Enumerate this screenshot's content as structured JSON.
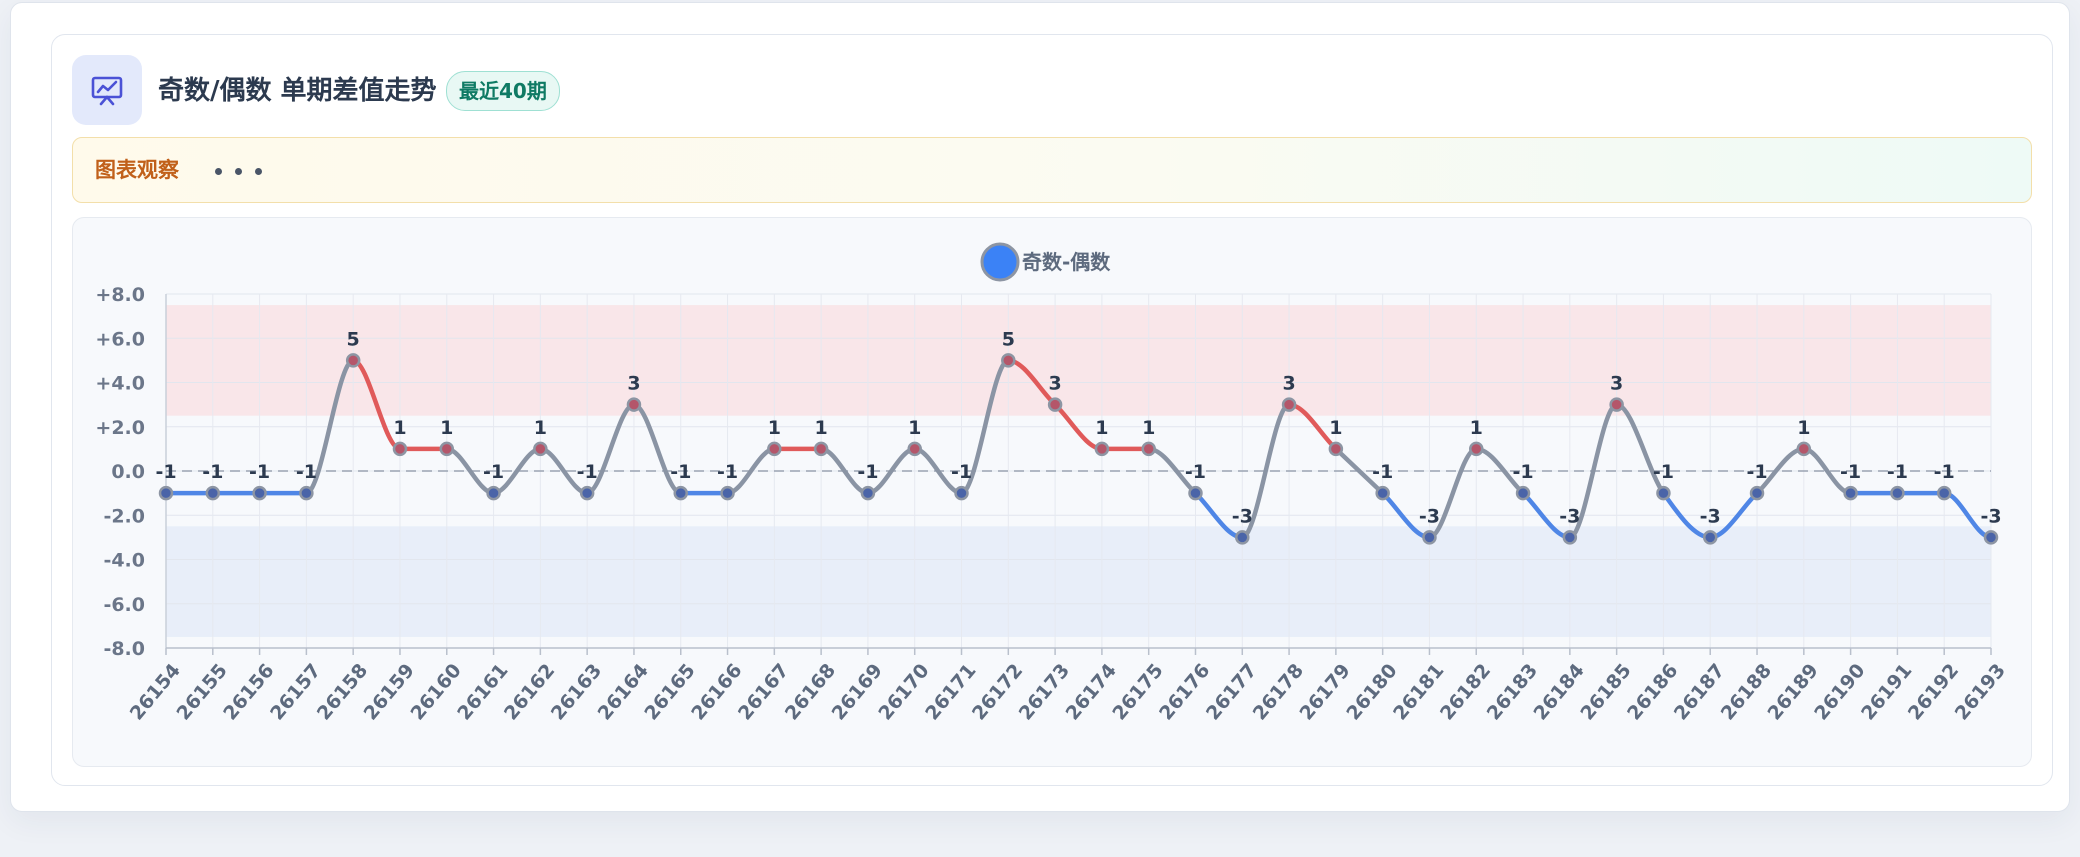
{
  "header": {
    "title": "奇数/偶数 单期差值走势",
    "badge": "最近40期",
    "icon": "presentation-chart-icon"
  },
  "insight": {
    "label": "图表观察",
    "icon": "more-dots-icon"
  },
  "colors": {
    "positive_line": "#e05a5a",
    "negative_line": "#4f86e6",
    "neutral_line": "#8a94a4",
    "legend_marker": "#3b82f6",
    "positive_band": "#f9e6e9",
    "negative_band": "#e8eef9"
  },
  "chart_data": {
    "type": "line",
    "legend": [
      "奇数-偶数"
    ],
    "legend_placement": "top-center",
    "grid": true,
    "categories": [
      "26154",
      "26155",
      "26156",
      "26157",
      "26158",
      "26159",
      "26160",
      "26161",
      "26162",
      "26163",
      "26164",
      "26165",
      "26166",
      "26167",
      "26168",
      "26169",
      "26170",
      "26171",
      "26172",
      "26173",
      "26174",
      "26175",
      "26176",
      "26177",
      "26178",
      "26179",
      "26180",
      "26181",
      "26182",
      "26183",
      "26184",
      "26185",
      "26186",
      "26187",
      "26188",
      "26189",
      "26190",
      "26191",
      "26192",
      "26193"
    ],
    "series": [
      {
        "name": "奇数-偶数",
        "values": [
          -1,
          -1,
          -1,
          -1,
          5,
          1,
          1,
          -1,
          1,
          -1,
          3,
          -1,
          -1,
          1,
          1,
          -1,
          1,
          -1,
          5,
          3,
          1,
          1,
          -1,
          -3,
          3,
          1,
          -1,
          -3,
          1,
          -1,
          -3,
          3,
          -1,
          -3,
          -1,
          1,
          -1,
          -1,
          -1,
          -3
        ]
      }
    ],
    "data_labels": [
      "-1",
      "-1",
      "-1",
      "-1",
      "5",
      "1",
      "1",
      "-1",
      "1",
      "-1",
      "3",
      "-1",
      "-1",
      "1",
      "1",
      "-1",
      "1",
      "-1",
      "5",
      "3",
      "1",
      "1",
      "-1",
      "-3",
      "3",
      "1",
      "-1",
      "-3",
      "1",
      "-1",
      "-3",
      "3",
      "-1",
      "-3",
      "-1",
      "1",
      "-1",
      "-1",
      "-1",
      "-3"
    ],
    "ylim": [
      -8,
      8
    ],
    "yticks": [
      8,
      6,
      4,
      2,
      0,
      -2,
      -4,
      -6,
      -8
    ],
    "ytick_labels": [
      "+8.0",
      "+6.0",
      "+4.0",
      "+2.0",
      "0.0",
      "-2.0",
      "-4.0",
      "-6.0",
      "-8.0"
    ],
    "bands": [
      {
        "from": 2.5,
        "to": 7.5,
        "color": "#f9e6e9"
      },
      {
        "from": -7.5,
        "to": -2.5,
        "color": "#e8eef9"
      }
    ],
    "reference_line": 0
  }
}
